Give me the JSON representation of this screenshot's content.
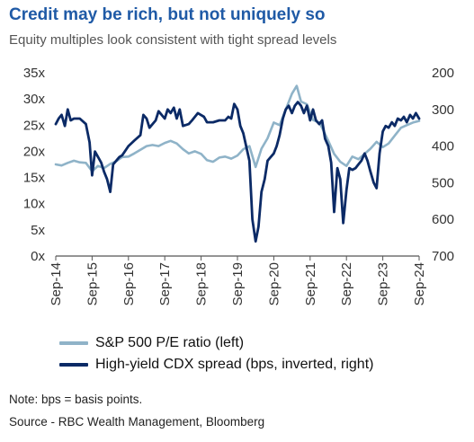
{
  "header": {
    "title": "Credit may be rich, but not uniquely so",
    "subtitle": "Equity multiples look consistent with tight spread levels"
  },
  "footer": {
    "note": "Note: bps = basis points.",
    "source": "Source - RBC Wealth Management, Bloomberg"
  },
  "colors": {
    "pe": "#8fb3c8",
    "cdx": "#0b2a66",
    "axis": "#555555",
    "title": "#1f5aa6"
  },
  "chart_data": {
    "type": "line",
    "title": "Credit may be rich, but not uniquely so",
    "subtitle": "Equity multiples look consistent with tight spread levels",
    "x_ticks": [
      "Sep-14",
      "Sep-15",
      "Sep-16",
      "Sep-17",
      "Sep-18",
      "Sep-19",
      "Sep-20",
      "Sep-21",
      "Sep-22",
      "Sep-23",
      "Sep-24"
    ],
    "x_range": [
      2014.67,
      2024.67
    ],
    "left_axis": {
      "ticks": [
        "0x",
        "5x",
        "10x",
        "15x",
        "20x",
        "25x",
        "30x",
        "35x"
      ],
      "values": [
        0,
        5,
        10,
        15,
        20,
        25,
        30,
        35
      ],
      "range": [
        0,
        35
      ]
    },
    "right_axis": {
      "ticks": [
        "200",
        "300",
        "400",
        "500",
        "600",
        "700"
      ],
      "values": [
        200,
        300,
        400,
        500,
        600,
        700
      ],
      "range": [
        200,
        700
      ],
      "inverted": true
    },
    "grid": false,
    "legend_position": "bottom",
    "series": [
      {
        "name": "S&P 500 P/E ratio (left)",
        "axis": "left",
        "points": [
          [
            2014.67,
            17.5
          ],
          [
            2014.83,
            17.3
          ],
          [
            2015.0,
            17.8
          ],
          [
            2015.17,
            18.2
          ],
          [
            2015.33,
            17.9
          ],
          [
            2015.5,
            17.8
          ],
          [
            2015.67,
            16.2
          ],
          [
            2015.83,
            17.2
          ],
          [
            2016.0,
            16.8
          ],
          [
            2016.17,
            17.6
          ],
          [
            2016.33,
            18.1
          ],
          [
            2016.5,
            18.9
          ],
          [
            2016.67,
            19.0
          ],
          [
            2016.83,
            19.6
          ],
          [
            2017.0,
            20.3
          ],
          [
            2017.17,
            21.0
          ],
          [
            2017.33,
            21.2
          ],
          [
            2017.5,
            21.0
          ],
          [
            2017.67,
            21.6
          ],
          [
            2017.83,
            22.0
          ],
          [
            2018.0,
            21.5
          ],
          [
            2018.17,
            20.4
          ],
          [
            2018.33,
            19.6
          ],
          [
            2018.5,
            20.0
          ],
          [
            2018.67,
            19.5
          ],
          [
            2018.83,
            18.3
          ],
          [
            2019.0,
            18.0
          ],
          [
            2019.17,
            18.8
          ],
          [
            2019.33,
            19.0
          ],
          [
            2019.5,
            18.6
          ],
          [
            2019.67,
            19.2
          ],
          [
            2019.83,
            20.4
          ],
          [
            2020.0,
            21.0
          ],
          [
            2020.17,
            17.0
          ],
          [
            2020.33,
            20.5
          ],
          [
            2020.5,
            22.5
          ],
          [
            2020.67,
            25.5
          ],
          [
            2020.83,
            25.0
          ],
          [
            2021.0,
            28.0
          ],
          [
            2021.17,
            31.0
          ],
          [
            2021.3,
            32.5
          ],
          [
            2021.42,
            29.5
          ],
          [
            2021.58,
            29.0
          ],
          [
            2021.75,
            26.0
          ],
          [
            2021.92,
            25.5
          ],
          [
            2022.0,
            24.5
          ],
          [
            2022.17,
            22.0
          ],
          [
            2022.33,
            19.5
          ],
          [
            2022.5,
            18.0
          ],
          [
            2022.67,
            17.2
          ],
          [
            2022.83,
            19.0
          ],
          [
            2023.0,
            18.5
          ],
          [
            2023.17,
            19.5
          ],
          [
            2023.33,
            20.5
          ],
          [
            2023.5,
            21.8
          ],
          [
            2023.67,
            20.8
          ],
          [
            2023.83,
            21.5
          ],
          [
            2024.0,
            23.0
          ],
          [
            2024.17,
            24.5
          ],
          [
            2024.33,
            25.0
          ],
          [
            2024.5,
            25.5
          ],
          [
            2024.67,
            25.8
          ]
        ]
      },
      {
        "name": "High-yield CDX spread (bps, inverted, right)",
        "axis": "right",
        "points": [
          [
            2014.67,
            340
          ],
          [
            2014.75,
            325
          ],
          [
            2014.83,
            315
          ],
          [
            2014.92,
            345
          ],
          [
            2015.0,
            300
          ],
          [
            2015.08,
            330
          ],
          [
            2015.17,
            325
          ],
          [
            2015.33,
            325
          ],
          [
            2015.5,
            340
          ],
          [
            2015.6,
            390
          ],
          [
            2015.67,
            480
          ],
          [
            2015.75,
            415
          ],
          [
            2015.92,
            445
          ],
          [
            2016.0,
            470
          ],
          [
            2016.08,
            490
          ],
          [
            2016.17,
            525
          ],
          [
            2016.25,
            450
          ],
          [
            2016.42,
            430
          ],
          [
            2016.5,
            425
          ],
          [
            2016.67,
            400
          ],
          [
            2016.83,
            385
          ],
          [
            2017.0,
            370
          ],
          [
            2017.08,
            315
          ],
          [
            2017.17,
            325
          ],
          [
            2017.25,
            350
          ],
          [
            2017.42,
            330
          ],
          [
            2017.5,
            305
          ],
          [
            2017.67,
            325
          ],
          [
            2017.75,
            300
          ],
          [
            2017.83,
            310
          ],
          [
            2017.92,
            295
          ],
          [
            2018.0,
            325
          ],
          [
            2018.08,
            300
          ],
          [
            2018.17,
            345
          ],
          [
            2018.33,
            340
          ],
          [
            2018.42,
            330
          ],
          [
            2018.58,
            310
          ],
          [
            2018.75,
            320
          ],
          [
            2018.83,
            335
          ],
          [
            2019.0,
            335
          ],
          [
            2019.17,
            330
          ],
          [
            2019.33,
            330
          ],
          [
            2019.42,
            320
          ],
          [
            2019.5,
            325
          ],
          [
            2019.58,
            285
          ],
          [
            2019.67,
            300
          ],
          [
            2019.75,
            345
          ],
          [
            2019.83,
            365
          ],
          [
            2020.0,
            440
          ],
          [
            2020.08,
            600
          ],
          [
            2020.17,
            660
          ],
          [
            2020.25,
            620
          ],
          [
            2020.33,
            525
          ],
          [
            2020.42,
            490
          ],
          [
            2020.5,
            440
          ],
          [
            2020.67,
            420
          ],
          [
            2020.75,
            400
          ],
          [
            2020.83,
            370
          ],
          [
            2020.92,
            325
          ],
          [
            2021.0,
            300
          ],
          [
            2021.08,
            290
          ],
          [
            2021.17,
            310
          ],
          [
            2021.25,
            290
          ],
          [
            2021.33,
            280
          ],
          [
            2021.42,
            290
          ],
          [
            2021.5,
            310
          ],
          [
            2021.58,
            290
          ],
          [
            2021.67,
            330
          ],
          [
            2021.75,
            300
          ],
          [
            2021.83,
            330
          ],
          [
            2021.92,
            340
          ],
          [
            2022.0,
            330
          ],
          [
            2022.08,
            380
          ],
          [
            2022.17,
            400
          ],
          [
            2022.25,
            445
          ],
          [
            2022.33,
            580
          ],
          [
            2022.42,
            460
          ],
          [
            2022.5,
            490
          ],
          [
            2022.58,
            610
          ],
          [
            2022.67,
            520
          ],
          [
            2022.75,
            460
          ],
          [
            2022.83,
            465
          ],
          [
            2022.92,
            460
          ],
          [
            2023.0,
            450
          ],
          [
            2023.08,
            440
          ],
          [
            2023.17,
            420
          ],
          [
            2023.25,
            440
          ],
          [
            2023.33,
            470
          ],
          [
            2023.42,
            500
          ],
          [
            2023.5,
            515
          ],
          [
            2023.58,
            420
          ],
          [
            2023.67,
            360
          ],
          [
            2023.75,
            345
          ],
          [
            2023.83,
            350
          ],
          [
            2023.92,
            335
          ],
          [
            2024.0,
            345
          ],
          [
            2024.08,
            325
          ],
          [
            2024.17,
            330
          ],
          [
            2024.25,
            320
          ],
          [
            2024.33,
            335
          ],
          [
            2024.42,
            315
          ],
          [
            2024.5,
            325
          ],
          [
            2024.58,
            310
          ],
          [
            2024.67,
            325
          ]
        ]
      }
    ]
  }
}
